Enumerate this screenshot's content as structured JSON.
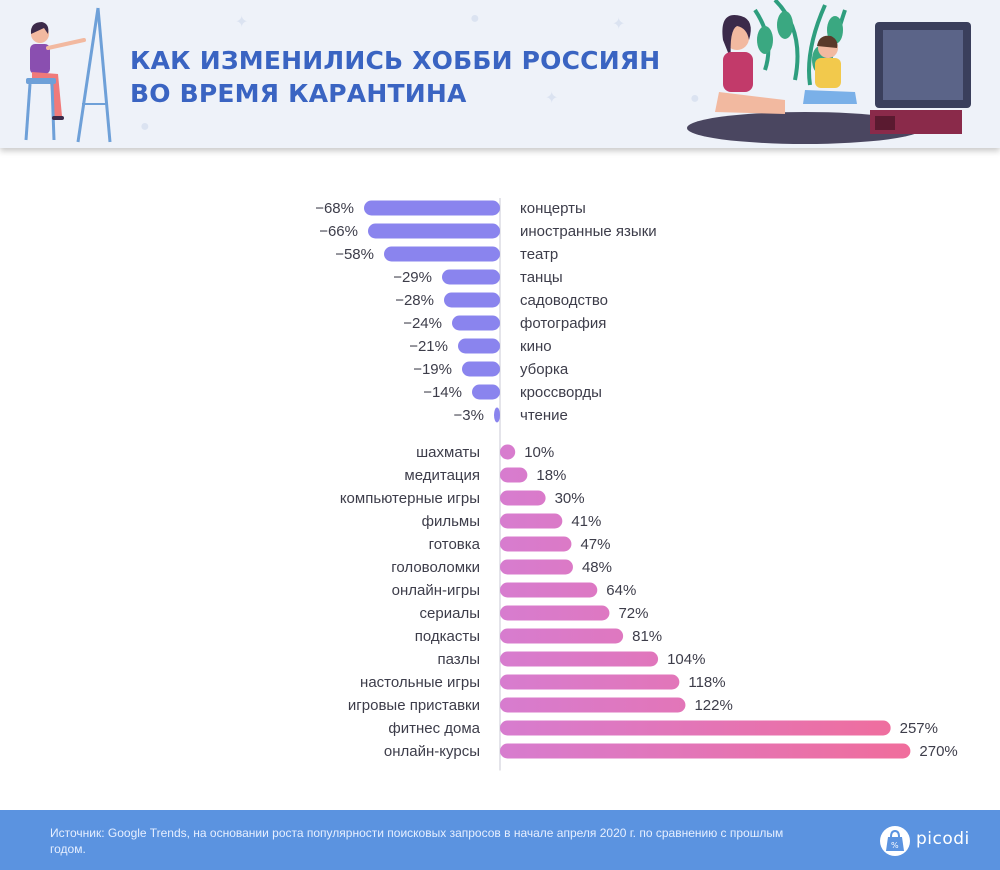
{
  "header": {
    "title_line1": "КАК ИЗМЕНИЛИСЬ ХОББИ РОССИЯН",
    "title_line2": "ВО ВРЕМЯ КАРАНТИНА"
  },
  "colors": {
    "title": "#3a64c2",
    "negative_bar": "#8a84ee",
    "positive_bar_start": "#d77ccf",
    "positive_bar_end": "#f06d9c",
    "footer": "#5b93e0",
    "label_text": "#3d3d4a"
  },
  "chart_data": {
    "type": "bar",
    "orientation": "horizontal",
    "value_suffix": "%",
    "negative": {
      "categories": [
        "концерты",
        "иностранные языки",
        "театр",
        "танцы",
        "садоводство",
        "фотография",
        "кино",
        "уборка",
        "кроссворды",
        "чтение"
      ],
      "values": [
        -68,
        -66,
        -58,
        -29,
        -28,
        -24,
        -21,
        -19,
        -14,
        -3
      ],
      "labels": [
        "−68%",
        "−66%",
        "−58%",
        "−29%",
        "−28%",
        "−24%",
        "−21%",
        "−19%",
        "−14%",
        "−3%"
      ]
    },
    "positive": {
      "categories": [
        "шахматы",
        "медитация",
        "компьютерные игры",
        "фильмы",
        "готовка",
        "головоломки",
        "онлайн-игры",
        "сериалы",
        "подкасты",
        "пазлы",
        "настольные игры",
        "игровые приставки",
        "фитнес дома",
        "онлайн-курсы"
      ],
      "values": [
        10,
        18,
        30,
        41,
        47,
        48,
        64,
        72,
        81,
        104,
        118,
        122,
        257,
        270
      ],
      "labels": [
        "10%",
        "18%",
        "30%",
        "41%",
        "47%",
        "48%",
        "64%",
        "72%",
        "81%",
        "104%",
        "118%",
        "122%",
        "257%",
        "270%"
      ]
    }
  },
  "footer": {
    "source_text": "Источник: Google Trends, на основании роста популярности поисковых запросов в начале апреля 2020 г. по сравнению с прошлым годом.",
    "brand": "picodi"
  }
}
